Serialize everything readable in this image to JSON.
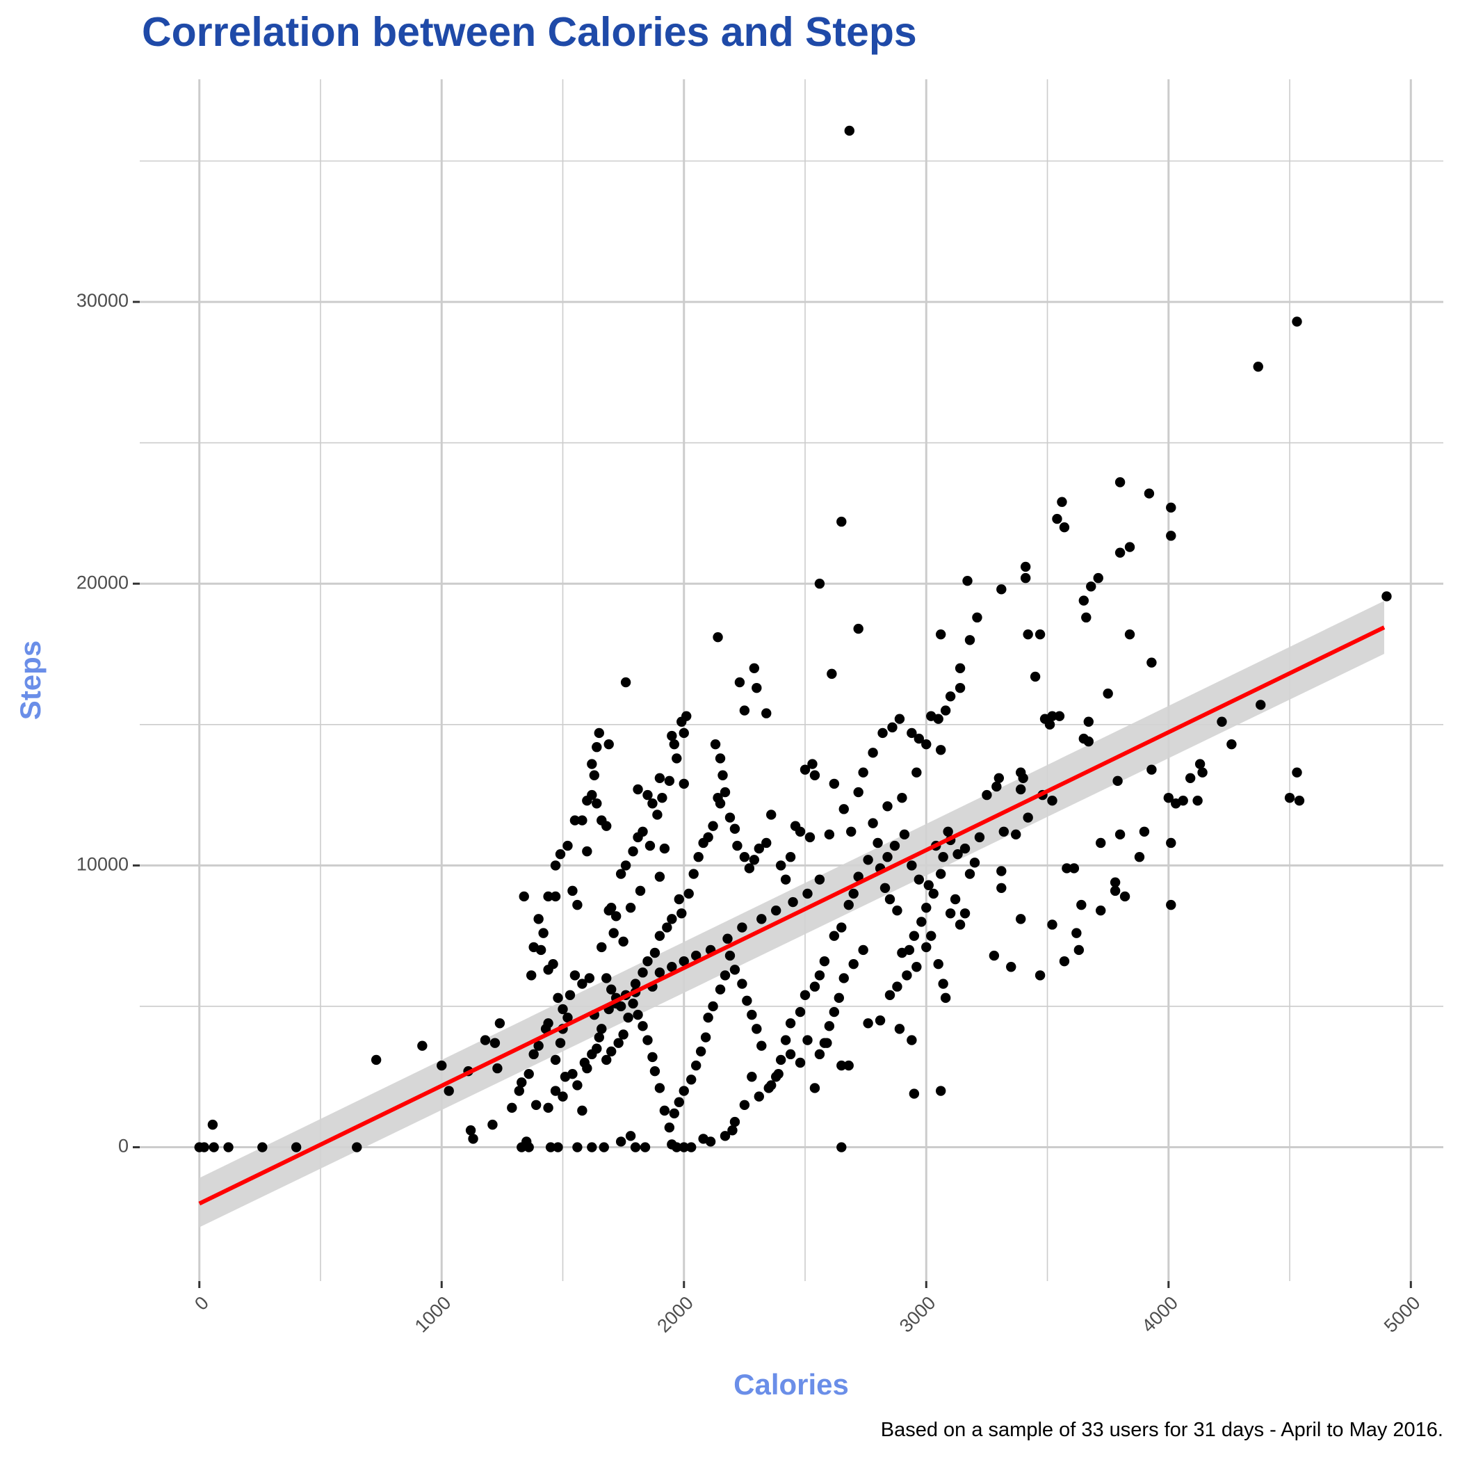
{
  "chart_data": {
    "type": "scatter",
    "title": "Correlation between Calories and Steps",
    "x_label": "Calories",
    "y_label": "Steps",
    "caption": "Based on a sample of 33 users for 31 days - April to May 2016.",
    "title_color": "#1f4aa8",
    "axis_title_color": "#6a8ee8",
    "color": "#000000",
    "grid": true,
    "grid_color": "#cccccc",
    "xlim": [
      -246,
      5134
    ],
    "ylim": [
      -4750,
      37900
    ],
    "xticks": [
      0,
      1000,
      2000,
      3000,
      4000,
      5000
    ],
    "yticks": [
      0,
      10000,
      20000,
      30000
    ],
    "x_minor_grid": [
      500,
      1500,
      2500,
      3500,
      4500
    ],
    "y_minor_grid": [
      5000,
      15000,
      25000,
      35000
    ],
    "fit": {
      "color": "#ff0000",
      "band_color": "#d3d3d3",
      "x": [
        0,
        4890
      ],
      "values": [
        -2000,
        18450
      ],
      "band_lower": [
        -2840,
        17510
      ],
      "band_upper": [
        -1090,
        19390
      ]
    },
    "x": [
      2683,
      4530,
      4370,
      4900,
      2650,
      2560,
      2720,
      2140,
      1760,
      3800,
      3920,
      4010,
      4010,
      3560,
      3540,
      3570,
      3410,
      3410,
      3170,
      3310,
      3210,
      3060,
      3180,
      3420,
      3470,
      3710,
      3680,
      3650,
      3660,
      3840,
      3800,
      3840,
      3930,
      3450,
      3140,
      3140,
      3100,
      2610,
      2290,
      2300,
      2230,
      2250,
      2340,
      3750,
      4380,
      4220,
      4260,
      4130,
      4140,
      4090,
      4530,
      4500,
      4540,
      4030,
      4060,
      4120,
      4000,
      3930,
      3790,
      3670,
      3650,
      3670,
      3520,
      3510,
      3550,
      3490,
      3520,
      3480,
      3390,
      3400,
      3390,
      3300,
      3290,
      3250,
      3320,
      3420,
      3370,
      4010,
      3880,
      3900,
      3800,
      3720,
      3610,
      3580,
      3640,
      3780,
      3780,
      3820,
      3720,
      3620,
      3630,
      3570,
      3520,
      3470,
      3350,
      3280,
      3310,
      3310,
      3390,
      4010,
      3060,
      2950,
      2650,
      2540,
      2650,
      2680,
      2590,
      2510,
      2440,
      2480,
      2390,
      2350,
      2280,
      2310,
      2250,
      2200,
      2210,
      2170,
      2110,
      2080,
      2030,
      2000,
      1970,
      1950,
      1840,
      1800,
      1780,
      1740,
      1670,
      1620,
      1560,
      1480,
      1450,
      1350,
      1330,
      1360,
      1290,
      1230,
      1220,
      1180,
      1240,
      1110,
      1030,
      1000,
      920,
      730,
      1130,
      1120,
      1210,
      650,
      400,
      260,
      120,
      60,
      55,
      0,
      20,
      1340,
      1440,
      1470,
      1410,
      1380,
      1400,
      1420,
      1370,
      1440,
      1460,
      1500,
      1480,
      1440,
      1430,
      1400,
      1380,
      1360,
      1330,
      1320,
      1390,
      1440,
      1470,
      1500,
      1510,
      1540,
      1560,
      1580,
      1600,
      1620,
      1640,
      1590,
      1470,
      1490,
      1520,
      1550,
      1580,
      1600,
      1540,
      1560,
      1620,
      1630,
      1640,
      1650,
      1690,
      1620,
      1640,
      1600,
      1660,
      1680,
      1700,
      1690,
      1720,
      1740,
      1760,
      1790,
      1810,
      1830,
      1810,
      1850,
      1870,
      1900,
      1910,
      1950,
      1960,
      1970,
      1990,
      2010,
      2000,
      1940,
      2000,
      1890,
      1920,
      1860,
      1900,
      1820,
      1780,
      1750,
      1710,
      1660,
      1680,
      1700,
      1720,
      1740,
      1760,
      1800,
      1830,
      1850,
      1880,
      1900,
      1930,
      1950,
      1980,
      1990,
      2020,
      2040,
      2060,
      2080,
      2100,
      2120,
      2140,
      2150,
      2130,
      2150,
      2160,
      2170,
      2190,
      2210,
      2220,
      2250,
      2270,
      2290,
      2310,
      2340,
      2360,
      2400,
      2420,
      2440,
      2460,
      2480,
      2500,
      2530,
      2540,
      2520,
      2560,
      2600,
      2620,
      2660,
      2690,
      2720,
      2740,
      2780,
      2820,
      2860,
      2890,
      2940,
      2970,
      3000,
      3020,
      3050,
      3060,
      3080,
      2960,
      2900,
      2840,
      2780,
      2800,
      2760,
      2720,
      2700,
      2680,
      2650,
      2620,
      2580,
      2560,
      2540,
      2500,
      2480,
      2440,
      2420,
      2400,
      2380,
      2360,
      2320,
      2300,
      2280,
      2260,
      2240,
      2210,
      2190,
      2170,
      2150,
      2120,
      2100,
      2090,
      2070,
      2050,
      2030,
      2000,
      1980,
      1960,
      1940,
      1920,
      1900,
      1880,
      1870,
      1850,
      1830,
      1810,
      1790,
      1770,
      1750,
      1730,
      1700,
      1680,
      1660,
      1650,
      1630,
      1610,
      1580,
      1550,
      1530,
      1520,
      1500,
      1490,
      1470,
      2760,
      2810,
      2850,
      2880,
      2920,
      2960,
      3000,
      3020,
      3050,
      3070,
      3080,
      3100,
      3120,
      3140,
      3160,
      3180,
      3200,
      3220,
      3160,
      3130,
      3100,
      3090,
      3060,
      3030,
      3000,
      2980,
      2950,
      2930,
      2900,
      2880,
      2850,
      2830,
      2810,
      2840,
      2870,
      2910,
      2940,
      2970,
      3010,
      3040,
      3070,
      2740,
      2700,
      2660,
      2640,
      2620,
      2600,
      2580,
      2560,
      2940,
      2890,
      1690,
      1720,
      1800,
      1870,
      1900,
      1950,
      2000,
      2050,
      2110,
      2180,
      2240,
      2320,
      2380,
      2450,
      2510
    ],
    "values": [
      36075,
      29300,
      27700,
      19550,
      22200,
      20000,
      18400,
      18100,
      16500,
      23600,
      23200,
      22700,
      21700,
      22900,
      22300,
      22000,
      20600,
      20200,
      20100,
      19800,
      18800,
      18200,
      18000,
      18200,
      18200,
      20200,
      19900,
      19400,
      18800,
      21300,
      21100,
      18200,
      17200,
      16700,
      17000,
      16300,
      16000,
      16800,
      17000,
      16300,
      16500,
      15500,
      15400,
      16100,
      15700,
      15100,
      14300,
      13600,
      13300,
      13100,
      13300,
      12400,
      12300,
      12200,
      12300,
      12300,
      12400,
      13400,
      13000,
      15100,
      14500,
      14400,
      15300,
      15000,
      15300,
      15200,
      12300,
      12500,
      13300,
      13100,
      12700,
      13100,
      12800,
      12500,
      11200,
      11700,
      11100,
      10800,
      10300,
      11200,
      11100,
      10800,
      9900,
      9900,
      8600,
      9400,
      9100,
      8900,
      8400,
      7600,
      7000,
      6600,
      7900,
      6100,
      6400,
      6800,
      9800,
      9200,
      8100,
      8600,
      2000,
      1900,
      0,
      2100,
      2900,
      2900,
      3700,
      3800,
      3300,
      3000,
      2600,
      2100,
      2500,
      1800,
      1500,
      600,
      900,
      400,
      200,
      300,
      0,
      0,
      0,
      100,
      0,
      0,
      400,
      200,
      0,
      0,
      0,
      0,
      0,
      200,
      0,
      0,
      1400,
      2800,
      3700,
      3800,
      4400,
      2700,
      2000,
      2900,
      3600,
      3100,
      300,
      600,
      800,
      0,
      0,
      0,
      0,
      0,
      800,
      0,
      0,
      8900,
      8900,
      8900,
      7000,
      7100,
      8100,
      7600,
      6100,
      6300,
      6500,
      4900,
      5300,
      4400,
      4200,
      3600,
      3300,
      2600,
      2300,
      2000,
      1500,
      1400,
      2000,
      1800,
      2500,
      2600,
      2200,
      1300,
      2800,
      3300,
      3500,
      3000,
      10000,
      10400,
      10700,
      11600,
      11600,
      10500,
      9100,
      8600,
      13600,
      13200,
      14200,
      14700,
      14300,
      12500,
      12200,
      12300,
      11600,
      11400,
      8500,
      8400,
      8200,
      9700,
      10000,
      10500,
      11000,
      11200,
      12700,
      12500,
      12200,
      13100,
      12400,
      14600,
      14300,
      13800,
      15100,
      15300,
      14700,
      13000,
      12900,
      11800,
      10600,
      10700,
      9600,
      9100,
      8500,
      7300,
      7600,
      7100,
      6000,
      5600,
      5300,
      5000,
      5400,
      5800,
      6200,
      6600,
      6900,
      7500,
      7800,
      8100,
      8800,
      8300,
      9000,
      9700,
      10300,
      10800,
      11000,
      11400,
      12400,
      12200,
      14300,
      13800,
      13200,
      12600,
      11700,
      11300,
      10700,
      10300,
      9900,
      10200,
      10600,
      10800,
      11800,
      10000,
      9500,
      10300,
      11400,
      11200,
      13400,
      13600,
      13200,
      11000,
      9500,
      11100,
      12900,
      12000,
      11200,
      12600,
      13300,
      14000,
      14700,
      14900,
      15200,
      14700,
      14500,
      14300,
      15300,
      15200,
      14100,
      15500,
      13300,
      12400,
      12100,
      11500,
      10800,
      10200,
      9600,
      9000,
      8600,
      7800,
      7500,
      6600,
      6100,
      5700,
      5400,
      4800,
      4400,
      3800,
      3100,
      2500,
      2200,
      3600,
      4200,
      4700,
      5200,
      5800,
      6300,
      6800,
      6100,
      5600,
      5000,
      4600,
      3900,
      3400,
      2900,
      2400,
      2000,
      1600,
      1200,
      700,
      1300,
      2100,
      2700,
      3200,
      3800,
      4300,
      4700,
      5100,
      4600,
      4000,
      3700,
      3400,
      3100,
      4200,
      3900,
      4700,
      6000,
      5800,
      6100,
      5400,
      4600,
      4200,
      3700,
      3100,
      4400,
      4500,
      5400,
      5700,
      6100,
      6400,
      7100,
      7500,
      6500,
      5800,
      5300,
      8300,
      8800,
      7900,
      8300,
      9700,
      10100,
      11000,
      10600,
      10400,
      10900,
      11200,
      9700,
      9000,
      8500,
      8000,
      7500,
      7000,
      6900,
      8400,
      8800,
      9200,
      9900,
      10300,
      10700,
      11100,
      10000,
      9500,
      9300,
      10700,
      10300,
      7000,
      6500,
      6000,
      5300,
      4800,
      4300,
      3700,
      3300,
      3800,
      4200,
      4900,
      5100,
      5500,
      5700,
      6200,
      6400,
      6600,
      6800,
      7000,
      7400,
      7800,
      8100,
      8400,
      8700,
      9000
    ]
  }
}
